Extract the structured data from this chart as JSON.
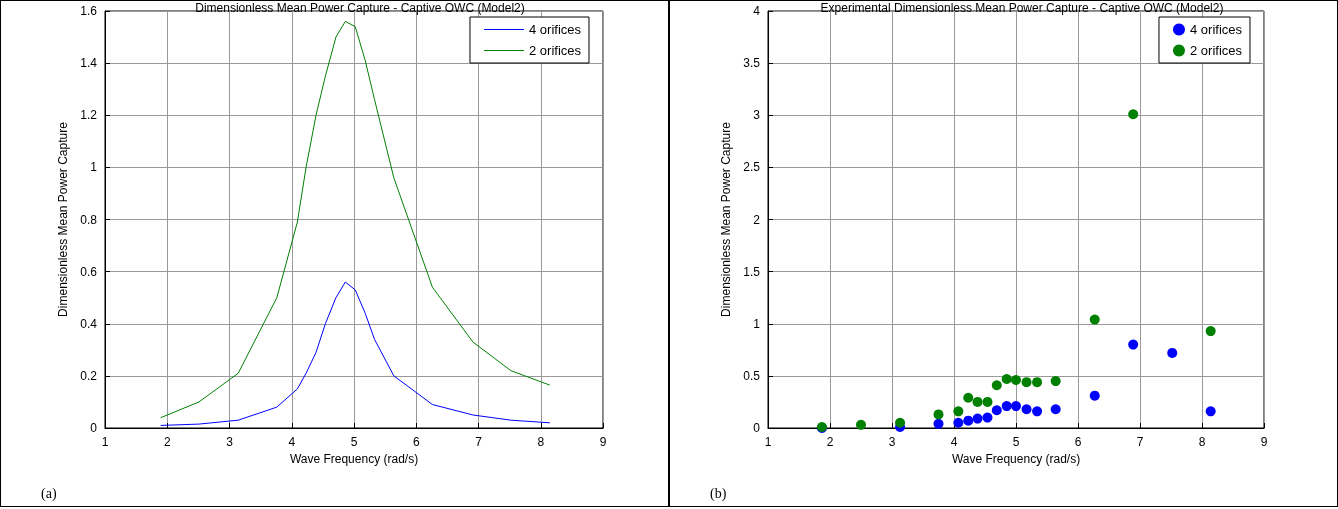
{
  "chart_data": [
    {
      "type": "line",
      "title": "Dimensionless Mean Power Capture - Captive OWC (Model2)",
      "xlabel": "Wave Frequency (rad/s)",
      "ylabel": "Dimensionless Mean Power Capture",
      "xlim": [
        1,
        9
      ],
      "xticks": [
        1,
        2,
        3,
        4,
        5,
        6,
        7,
        8,
        9
      ],
      "ylim": [
        0,
        1.6
      ],
      "yticks": [
        0,
        0.2,
        0.4,
        0.6,
        0.8,
        1,
        1.2,
        1.4,
        1.6
      ],
      "grid": true,
      "legend": "top right",
      "marker": "none",
      "line_style": "solid",
      "annotations": [
        "(a)"
      ],
      "series": [
        {
          "name": "4 orifices",
          "color": "#0000ff",
          "x": [
            1.9,
            2.51,
            3.14,
            3.76,
            4.09,
            4.23,
            4.39,
            4.54,
            4.71,
            4.86,
            5.02,
            5.18,
            5.33,
            5.64,
            6.26,
            6.91,
            7.52,
            8.14
          ],
          "values": [
            0.01,
            0.015,
            0.03,
            0.08,
            0.15,
            0.21,
            0.29,
            0.4,
            0.5,
            0.56,
            0.53,
            0.44,
            0.34,
            0.2,
            0.09,
            0.05,
            0.03,
            0.02
          ]
        },
        {
          "name": "2 orifices",
          "color": "#008000",
          "x": [
            1.9,
            2.51,
            3.14,
            3.76,
            4.09,
            4.23,
            4.39,
            4.54,
            4.71,
            4.86,
            5.02,
            5.18,
            5.33,
            5.64,
            6.26,
            6.91,
            7.52,
            8.14
          ],
          "values": [
            0.04,
            0.1,
            0.21,
            0.5,
            0.79,
            1.0,
            1.2,
            1.35,
            1.5,
            1.56,
            1.54,
            1.41,
            1.26,
            0.96,
            0.54,
            0.33,
            0.22,
            0.165
          ]
        }
      ]
    },
    {
      "type": "scatter",
      "title": "Experimental Dimensionless Mean Power Capture - Captive OWC (Model2)",
      "xlabel": "Wave Frequency (rad/s)",
      "ylabel": "Dimensionless Mean Power Capture",
      "xlim": [
        1,
        9
      ],
      "xticks": [
        1,
        2,
        3,
        4,
        5,
        6,
        7,
        8,
        9
      ],
      "ylim": [
        0,
        4
      ],
      "yticks": [
        0,
        0.5,
        1,
        1.5,
        2,
        2.5,
        3,
        3.5,
        4
      ],
      "grid": true,
      "legend": "top right",
      "marker": "circle",
      "annotations": [
        "(b)"
      ],
      "series": [
        {
          "name": "4 orifices",
          "color": "#0000ff",
          "x": [
            1.87,
            2.5,
            3.13,
            3.75,
            4.07,
            4.23,
            4.38,
            4.54,
            4.69,
            4.85,
            5.0,
            5.17,
            5.34,
            5.64,
            6.27,
            6.89,
            7.52,
            8.14
          ],
          "values": [
            0.0,
            null,
            0.01,
            0.04,
            0.05,
            0.07,
            0.09,
            0.1,
            0.17,
            0.21,
            0.21,
            0.18,
            0.16,
            0.18,
            0.31,
            0.8,
            0.72,
            0.16
          ]
        },
        {
          "name": "2 orifices",
          "color": "#008000",
          "x": [
            1.87,
            2.5,
            3.13,
            3.75,
            4.07,
            4.23,
            4.38,
            4.54,
            4.69,
            4.85,
            5.0,
            5.17,
            5.34,
            5.64,
            6.27,
            6.89,
            8.14
          ],
          "values": [
            0.01,
            0.03,
            0.05,
            0.13,
            0.16,
            0.29,
            0.25,
            0.25,
            0.41,
            0.47,
            0.46,
            0.44,
            0.44,
            0.45,
            1.04,
            3.01,
            0.93
          ]
        }
      ]
    }
  ]
}
